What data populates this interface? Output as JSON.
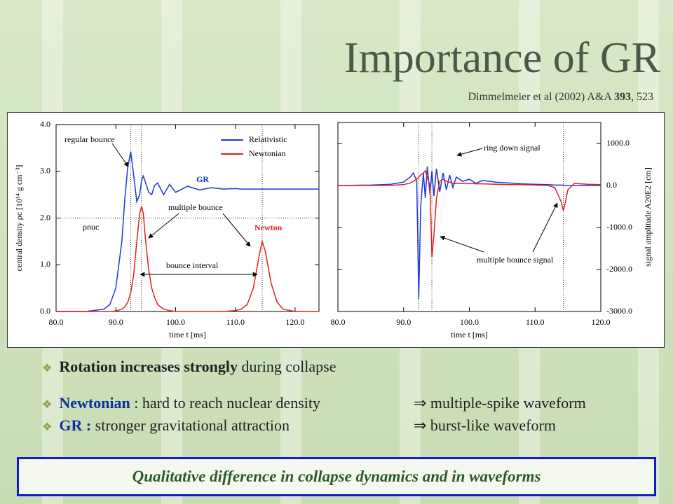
{
  "slide": {
    "title": "Importance of GR",
    "citation": {
      "authors": "Dimmelmeier  et al (2002) A&A ",
      "volume": "393",
      "pages": ", 523"
    },
    "bullets": [
      {
        "parts": [
          "Rotation increases strongly",
          " during collapse"
        ]
      },
      {
        "parts": [
          "Newtonian",
          " : hard to reach nuclear density",
          "⇒ multiple-spike waveform"
        ]
      },
      {
        "parts": [
          "GR :",
          " stronger gravitational attraction",
          "⇒ burst-like waveform"
        ]
      }
    ],
    "conclusion": "Qualitative difference in collapse dynamics and  in waveforms"
  },
  "chart_data": [
    {
      "type": "line",
      "xlabel": "time t [ms]",
      "ylabel": "central density ρc [10¹⁴ g cm⁻³]",
      "legend": "upper right",
      "x": [
        80,
        85,
        88,
        89,
        90,
        91,
        91.5,
        92,
        92.5,
        93,
        93.5,
        94,
        94.3,
        94.6,
        95,
        95.5,
        96,
        96.5,
        97,
        98,
        99,
        100,
        102,
        104,
        106,
        108,
        110,
        111,
        112,
        113,
        114,
        114.5,
        115,
        116,
        117,
        118,
        120,
        124
      ],
      "series": [
        {
          "name": "Relativistic",
          "color": "#2038d8",
          "values": [
            0,
            0,
            0.05,
            0.15,
            0.5,
            1.5,
            2.4,
            3.1,
            3.42,
            2.9,
            2.35,
            2.5,
            2.8,
            2.9,
            2.75,
            2.55,
            2.5,
            2.7,
            2.75,
            2.5,
            2.72,
            2.55,
            2.68,
            2.6,
            2.65,
            2.62,
            2.63,
            2.62,
            2.62,
            2.62,
            2.62,
            2.62,
            2.62,
            2.62,
            2.62,
            2.62,
            2.62,
            2.62
          ]
        },
        {
          "name": "Newtonian",
          "color": "#e02020",
          "values": [
            0,
            0,
            0,
            0,
            0.01,
            0.05,
            0.1,
            0.2,
            0.4,
            0.8,
            1.5,
            2.1,
            2.25,
            2.1,
            1.5,
            0.9,
            0.5,
            0.3,
            0.15,
            0.05,
            0.02,
            0,
            0,
            0,
            0,
            0,
            0.02,
            0.05,
            0.15,
            0.5,
            1.2,
            1.5,
            1.3,
            0.6,
            0.2,
            0.05,
            0,
            0
          ]
        }
      ],
      "xlim": [
        80,
        124
      ],
      "ylim": [
        0,
        4
      ],
      "xticks": [
        {
          "value": 80,
          "label": "80.0"
        },
        {
          "value": 90,
          "label": "90.0"
        },
        {
          "value": 100,
          "label": "100.0"
        },
        {
          "value": 110,
          "label": "110.0"
        },
        {
          "value": 120,
          "label": "120.0"
        }
      ],
      "yticks": [
        {
          "value": 0,
          "label": "0.0"
        },
        {
          "value": 1,
          "label": "1.0"
        },
        {
          "value": 2,
          "label": "2.0"
        },
        {
          "value": 3,
          "label": "3.0"
        },
        {
          "value": 4,
          "label": "4.0"
        }
      ],
      "vlines": [
        92.5,
        94.3,
        114.5
      ],
      "hlines": [
        2
      ],
      "annotations": [
        "regular bounce",
        "ρnuc",
        "multiple bounce",
        "bounce interval",
        "GR",
        "Newton"
      ]
    },
    {
      "type": "line",
      "xlabel": "time t [ms]",
      "ylabel": "signal amplitude A20E2 [cm]",
      "x": [
        80,
        85,
        88,
        90,
        91,
        91.5,
        92,
        92.3,
        92.6,
        93,
        93.3,
        93.6,
        94,
        94.3,
        94.6,
        95,
        95.5,
        96,
        96.5,
        97,
        97.5,
        98,
        99,
        100,
        101,
        102,
        104,
        106,
        108,
        110,
        112,
        113,
        114,
        114.3,
        114.6,
        115,
        116,
        118,
        120
      ],
      "series": [
        {
          "name": "Relativistic",
          "color": "#2038d8",
          "values": [
            0,
            10,
            30,
            80,
            200,
            300,
            100,
            -2700,
            -500,
            300,
            -300,
            450,
            -200,
            350,
            -250,
            400,
            -150,
            300,
            -100,
            250,
            -50,
            200,
            100,
            150,
            50,
            120,
            80,
            60,
            40,
            30,
            20,
            10,
            10,
            10,
            0,
            0,
            0,
            0,
            0
          ]
        },
        {
          "name": "Newtonian",
          "color": "#e02020",
          "values": [
            0,
            0,
            5,
            20,
            60,
            100,
            150,
            200,
            250,
            300,
            350,
            200,
            0,
            -1700,
            -1200,
            -300,
            100,
            150,
            100,
            80,
            50,
            50,
            50,
            50,
            40,
            40,
            30,
            20,
            20,
            10,
            0,
            -50,
            -400,
            -600,
            -400,
            -100,
            50,
            30,
            20
          ]
        }
      ],
      "xlim": [
        80,
        120
      ],
      "ylim": [
        -3000,
        1500
      ],
      "xticks": [
        {
          "value": 80,
          "label": "80.0"
        },
        {
          "value": 90,
          "label": "90.0"
        },
        {
          "value": 100,
          "label": "100.0"
        },
        {
          "value": 110,
          "label": "110.0"
        },
        {
          "value": 120,
          "label": "120.0"
        }
      ],
      "yticks": [
        {
          "value": 1000,
          "label": "1000.0"
        },
        {
          "value": 0,
          "label": "0.0"
        },
        {
          "value": -1000,
          "label": "-1000.0"
        },
        {
          "value": -2000,
          "label": "-2000.0"
        },
        {
          "value": -3000,
          "label": "-3000.0"
        }
      ],
      "vlines": [
        92.3,
        94.3,
        114.3
      ],
      "annotations": [
        "ring down signal",
        "multiple bounce signal"
      ]
    }
  ]
}
